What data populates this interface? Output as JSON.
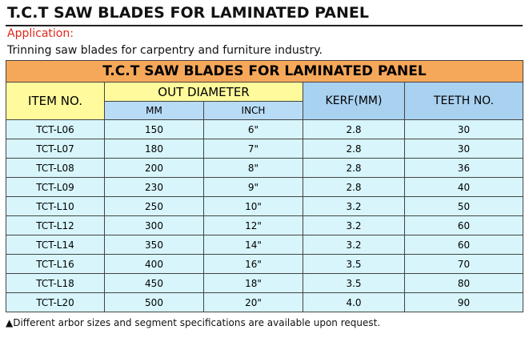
{
  "header": {
    "title": "T.C.T SAW BLADES FOR LAMINATED PANEL",
    "application_label": "Application:",
    "application_text": "Trinning saw blades for carpentry and furniture industry."
  },
  "table": {
    "banner": "T.C.T SAW BLADES FOR LAMINATED PANEL",
    "columns": {
      "item_no": "ITEM NO.",
      "out_diameter": "OUT DIAMETER",
      "mm": "MM",
      "inch": "INCH",
      "kerf": "KERF(MM)",
      "teeth": "TEETH NO."
    },
    "rows": [
      {
        "item": "TCT-L06",
        "mm": "150",
        "inch": "6\"",
        "kerf": "2.8",
        "teeth": "30"
      },
      {
        "item": "TCT-L07",
        "mm": "180",
        "inch": "7\"",
        "kerf": "2.8",
        "teeth": "30"
      },
      {
        "item": "TCT-L08",
        "mm": "200",
        "inch": "8\"",
        "kerf": "2.8",
        "teeth": "36"
      },
      {
        "item": "TCT-L09",
        "mm": "230",
        "inch": "9\"",
        "kerf": "2.8",
        "teeth": "40"
      },
      {
        "item": "TCT-L10",
        "mm": "250",
        "inch": "10\"",
        "kerf": "3.2",
        "teeth": "50"
      },
      {
        "item": "TCT-L12",
        "mm": "300",
        "inch": "12\"",
        "kerf": "3.2",
        "teeth": "60"
      },
      {
        "item": "TCT-L14",
        "mm": "350",
        "inch": "14\"",
        "kerf": "3.2",
        "teeth": "60"
      },
      {
        "item": "TCT-L16",
        "mm": "400",
        "inch": "16\"",
        "kerf": "3.5",
        "teeth": "70"
      },
      {
        "item": "TCT-L18",
        "mm": "450",
        "inch": "18\"",
        "kerf": "3.5",
        "teeth": "80"
      },
      {
        "item": "TCT-L20",
        "mm": "500",
        "inch": "20\"",
        "kerf": "4.0",
        "teeth": "90"
      }
    ]
  },
  "footnote": "▲Different arbor sizes and segment specifications are available upon request.",
  "colors": {
    "banner": "#f6a85a",
    "header_yellow": "#fffb9c",
    "header_blue": "#a9d1f0",
    "row_background": "#d7f5fb",
    "application_label": "#e0261b"
  }
}
